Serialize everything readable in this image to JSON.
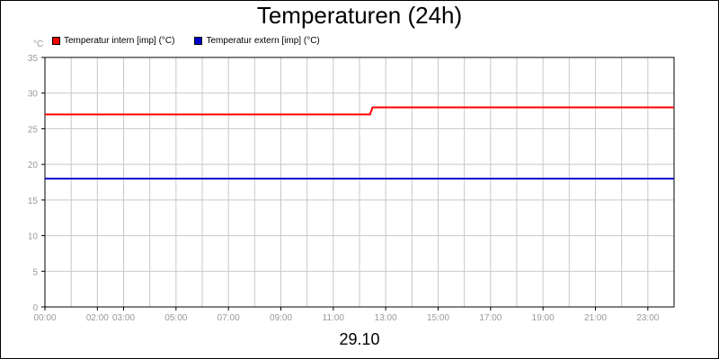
{
  "chart_data": {
    "type": "line",
    "title": "Temperaturen (24h)",
    "ylabel": "°C",
    "xlabel": "29.10",
    "ylim": [
      0,
      35
    ],
    "yticks": [
      0,
      5,
      10,
      15,
      20,
      25,
      30,
      35
    ],
    "xlim": [
      0,
      24
    ],
    "xticks": [
      {
        "x": 0,
        "label": "00:00"
      },
      {
        "x": 2,
        "label": "02:00"
      },
      {
        "x": 3,
        "label": "03:00"
      },
      {
        "x": 5,
        "label": "05:00"
      },
      {
        "x": 7,
        "label": "07:00"
      },
      {
        "x": 9,
        "label": "09:00"
      },
      {
        "x": 11,
        "label": "11:00"
      },
      {
        "x": 13,
        "label": "13:00"
      },
      {
        "x": 15,
        "label": "15:00"
      },
      {
        "x": 17,
        "label": "17:00"
      },
      {
        "x": 19,
        "label": "19:00"
      },
      {
        "x": 21,
        "label": "21:00"
      },
      {
        "x": 23,
        "label": "23:00"
      }
    ],
    "grid": true,
    "legend_position": "top-left",
    "series": [
      {
        "name": "Temperatur intern [imp] (°C)",
        "color": "#ff0000",
        "x": [
          0,
          12.4,
          12.5,
          24
        ],
        "y": [
          27,
          27,
          28,
          28
        ]
      },
      {
        "name": "Temperatur extern [imp] (°C)",
        "color": "#0000cc",
        "x": [
          0,
          24
        ],
        "y": [
          18,
          18
        ]
      }
    ]
  }
}
